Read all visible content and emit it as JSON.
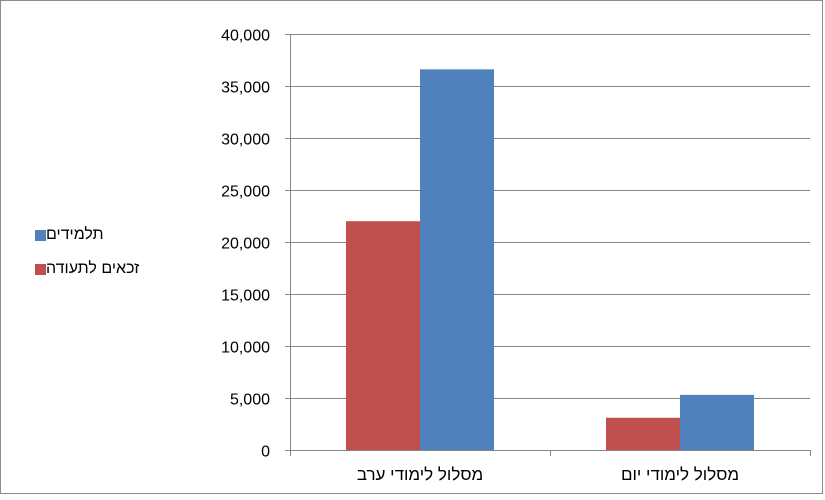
{
  "chart_data": {
    "type": "bar",
    "categories": [
      "מסלול לימודי ערב",
      "מסלול לימודי יום"
    ],
    "series": [
      {
        "name": "זכאים לתעודה",
        "values": [
          22000,
          3100
        ],
        "color": "#c0504d"
      },
      {
        "name": "תלמידים",
        "values": [
          36600,
          5300
        ],
        "color": "#4f81bd"
      }
    ],
    "title": "",
    "xlabel": "",
    "ylabel": "",
    "ylim": [
      0,
      40000
    ],
    "ytick_labels": [
      "0",
      "5,000",
      "10,000",
      "15,000",
      "20,000",
      "25,000",
      "30,000",
      "35,000",
      "40,000"
    ],
    "grid": true,
    "legend_position": "left",
    "axis_color": "#868686",
    "grid_color": "#868686"
  }
}
